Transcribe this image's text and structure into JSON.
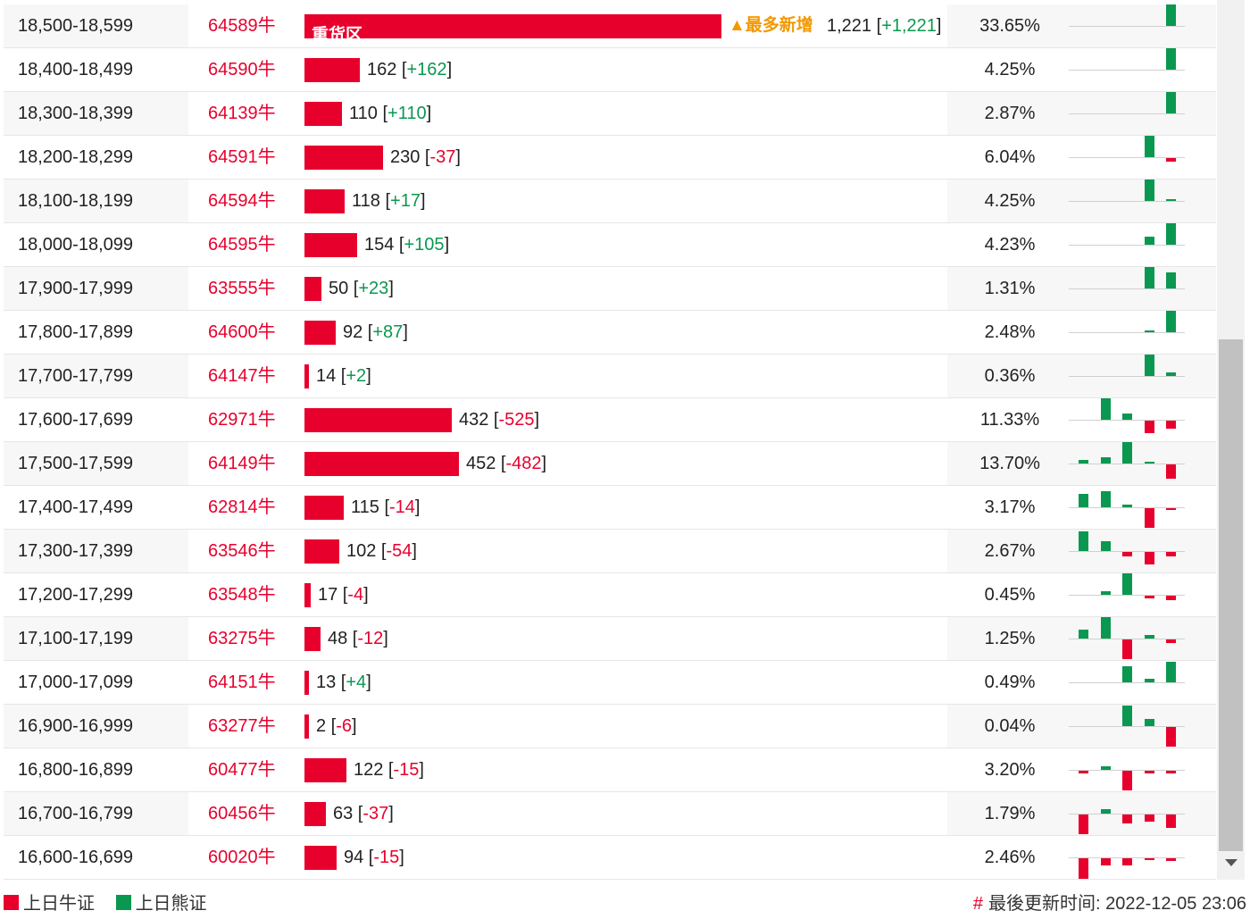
{
  "colors": {
    "bull": "#e8002d",
    "bear": "#0a9850",
    "note": "#f39800"
  },
  "rows": [
    {
      "range": "18,500-18,599",
      "ticker": "64589牛",
      "qty": 1221,
      "count": "1,221",
      "change": "+1,221",
      "pct": "33.65%",
      "bar_label": "重货区",
      "note": "▲最多新增",
      "mini": [
        0,
        0,
        0,
        0,
        24
      ]
    },
    {
      "range": "18,400-18,499",
      "ticker": "64590牛",
      "qty": 162,
      "count": "162",
      "change": "+162",
      "pct": "4.25%",
      "mini": [
        0,
        0,
        0,
        0,
        24
      ]
    },
    {
      "range": "18,300-18,399",
      "ticker": "64139牛",
      "qty": 110,
      "count": "110",
      "change": "+110",
      "pct": "2.87%",
      "mini": [
        0,
        0,
        0,
        0,
        24
      ]
    },
    {
      "range": "18,200-18,299",
      "ticker": "64591牛",
      "qty": 230,
      "count": "230",
      "change": "-37",
      "pct": "6.04%",
      "mini": [
        0,
        0,
        0,
        24,
        -4
      ]
    },
    {
      "range": "18,100-18,199",
      "ticker": "64594牛",
      "qty": 118,
      "count": "118",
      "change": "+17",
      "pct": "4.25%",
      "mini": [
        0,
        0,
        0,
        24,
        2
      ]
    },
    {
      "range": "18,000-18,099",
      "ticker": "64595牛",
      "qty": 154,
      "count": "154",
      "change": "+105",
      "pct": "4.23%",
      "mini": [
        0,
        0,
        0,
        9,
        24
      ]
    },
    {
      "range": "17,900-17,999",
      "ticker": "63555牛",
      "qty": 50,
      "count": "50",
      "change": "+23",
      "pct": "1.31%",
      "mini": [
        0,
        0,
        0,
        24,
        18
      ]
    },
    {
      "range": "17,800-17,899",
      "ticker": "64600牛",
      "qty": 92,
      "count": "92",
      "change": "+87",
      "pct": "2.48%",
      "mini": [
        0,
        0,
        0,
        2,
        24
      ]
    },
    {
      "range": "17,700-17,799",
      "ticker": "64147牛",
      "qty": 14,
      "count": "14",
      "change": "+2",
      "pct": "0.36%",
      "mini": [
        0,
        0,
        0,
        24,
        4
      ]
    },
    {
      "range": "17,600-17,699",
      "ticker": "62971牛",
      "qty": 432,
      "count": "432",
      "change": "-525",
      "pct": "11.33%",
      "mini": [
        0,
        24,
        7,
        -14,
        -9
      ]
    },
    {
      "range": "17,500-17,599",
      "ticker": "64149牛",
      "qty": 452,
      "count": "452",
      "change": "-482",
      "pct": "13.70%",
      "mini": [
        4,
        7,
        24,
        2,
        -16
      ]
    },
    {
      "range": "17,400-17,499",
      "ticker": "62814牛",
      "qty": 115,
      "count": "115",
      "change": "-14",
      "pct": "3.17%",
      "mini": [
        15,
        18,
        3,
        -22,
        -2
      ]
    },
    {
      "range": "17,300-17,399",
      "ticker": "63546牛",
      "qty": 102,
      "count": "102",
      "change": "-54",
      "pct": "2.67%",
      "mini": [
        22,
        11,
        -5,
        -14,
        -5
      ]
    },
    {
      "range": "17,200-17,299",
      "ticker": "63548牛",
      "qty": 17,
      "count": "17",
      "change": "-4",
      "pct": "0.45%",
      "mini": [
        0,
        4,
        24,
        -3,
        -5
      ]
    },
    {
      "range": "17,100-17,199",
      "ticker": "63275牛",
      "qty": 48,
      "count": "48",
      "change": "-12",
      "pct": "1.25%",
      "mini": [
        10,
        24,
        -22,
        4,
        -4
      ]
    },
    {
      "range": "17,000-17,099",
      "ticker": "64151牛",
      "qty": 13,
      "count": "13",
      "change": "+4",
      "pct": "0.49%",
      "mini": [
        0,
        0,
        18,
        4,
        23
      ]
    },
    {
      "range": "16,900-16,999",
      "ticker": "63277牛",
      "qty": 2,
      "count": "2",
      "change": "-6",
      "pct": "0.04%",
      "mini": [
        0,
        0,
        23,
        8,
        -22
      ]
    },
    {
      "range": "16,800-16,899",
      "ticker": "60477牛",
      "qty": 122,
      "count": "122",
      "change": "-15",
      "pct": "3.20%",
      "mini": [
        -3,
        4,
        -22,
        -3,
        -3
      ]
    },
    {
      "range": "16,700-16,799",
      "ticker": "60456牛",
      "qty": 63,
      "count": "63",
      "change": "-37",
      "pct": "1.79%",
      "mini": [
        -22,
        5,
        -10,
        -8,
        -15
      ]
    },
    {
      "range": "16,600-16,699",
      "ticker": "60020牛",
      "qty": 94,
      "count": "94",
      "change": "-15",
      "pct": "2.46%",
      "mini": [
        -23,
        -8,
        -8,
        -2,
        -3
      ]
    }
  ],
  "legend": {
    "bull": "上日牛证",
    "bear": "上日熊证"
  },
  "footer": {
    "hash": "#",
    "updated_label": "最後更新时间:",
    "updated_time": "2022-12-05 23:06"
  }
}
